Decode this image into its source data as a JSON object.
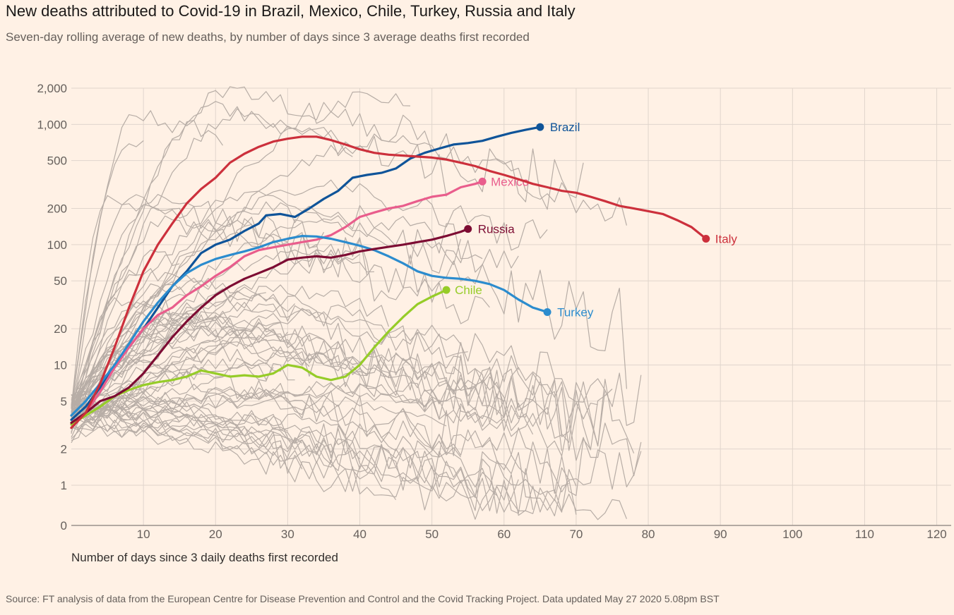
{
  "header": {
    "title": "New deaths attributed to Covid-19 in Brazil, Mexico, Chile, Turkey, Russia and Italy",
    "subtitle": "Seven-day rolling average of new deaths, by number of days since 3 average deaths first recorded"
  },
  "footer": {
    "source": "Source: FT analysis of data from the European Centre for Disease Prevention and Control and the Covid Tracking Project. Data updated May 27 2020 5.08pm BST"
  },
  "chart_data": {
    "type": "line",
    "title": "New deaths attributed to Covid-19 in Brazil, Mexico, Chile, Turkey, Russia and Italy",
    "subtitle": "Seven-day rolling average of new deaths, by number of days since 3 average deaths first recorded",
    "xlabel": "Number of days since 3 daily deaths first recorded",
    "ylabel": "",
    "xlim": [
      0,
      122
    ],
    "ylim": [
      0,
      2000
    ],
    "y_scale": "log (symlog, 0 at baseline)",
    "grid": true,
    "x_ticks": [
      {
        "value": 10,
        "label": "10"
      },
      {
        "value": 20,
        "label": "20"
      },
      {
        "value": 30,
        "label": "30"
      },
      {
        "value": 40,
        "label": "40"
      },
      {
        "value": 50,
        "label": "50"
      },
      {
        "value": 60,
        "label": "60"
      },
      {
        "value": 70,
        "label": "70"
      },
      {
        "value": 80,
        "label": "80"
      },
      {
        "value": 90,
        "label": "90"
      },
      {
        "value": 100,
        "label": "100"
      },
      {
        "value": 110,
        "label": "110"
      },
      {
        "value": 120,
        "label": "120"
      }
    ],
    "y_ticks": [
      {
        "value": 0,
        "label": "0"
      },
      {
        "value": 1,
        "label": "1"
      },
      {
        "value": 2,
        "label": "2"
      },
      {
        "value": 5,
        "label": "5"
      },
      {
        "value": 10,
        "label": "10"
      },
      {
        "value": 20,
        "label": "20"
      },
      {
        "value": 50,
        "label": "50"
      },
      {
        "value": 100,
        "label": "100"
      },
      {
        "value": 200,
        "label": "200"
      },
      {
        "value": 500,
        "label": "500"
      },
      {
        "value": 1000,
        "label": "1,000"
      },
      {
        "value": 2000,
        "label": "2,000"
      }
    ],
    "colors": {
      "background": "#fff1e5",
      "grid": "#e0d5cc",
      "other_countries": "#b7ada6",
      "axis": "#9a918c"
    },
    "series": [
      {
        "name": "Brazil",
        "color": "#0f5499",
        "values": [
          [
            0,
            3.5
          ],
          [
            2,
            4.5
          ],
          [
            4,
            6.5
          ],
          [
            6,
            10
          ],
          [
            8,
            14
          ],
          [
            10,
            20
          ],
          [
            12,
            30
          ],
          [
            14,
            45
          ],
          [
            16,
            60
          ],
          [
            18,
            85
          ],
          [
            20,
            100
          ],
          [
            22,
            110
          ],
          [
            24,
            130
          ],
          [
            26,
            150
          ],
          [
            27,
            175
          ],
          [
            29,
            180
          ],
          [
            31,
            170
          ],
          [
            33,
            200
          ],
          [
            35,
            240
          ],
          [
            37,
            280
          ],
          [
            39,
            360
          ],
          [
            41,
            380
          ],
          [
            43,
            395
          ],
          [
            45,
            430
          ],
          [
            47,
            520
          ],
          [
            49,
            580
          ],
          [
            51,
            630
          ],
          [
            53,
            680
          ],
          [
            55,
            700
          ],
          [
            57,
            730
          ],
          [
            59,
            790
          ],
          [
            61,
            850
          ],
          [
            63,
            900
          ],
          [
            65,
            950
          ]
        ]
      },
      {
        "name": "Mexico",
        "color": "#e95d8c",
        "values": [
          [
            0,
            3
          ],
          [
            2,
            4
          ],
          [
            4,
            6
          ],
          [
            6,
            9.5
          ],
          [
            8,
            14
          ],
          [
            10,
            20
          ],
          [
            12,
            26
          ],
          [
            14,
            30
          ],
          [
            16,
            38
          ],
          [
            18,
            45
          ],
          [
            20,
            55
          ],
          [
            22,
            65
          ],
          [
            24,
            80
          ],
          [
            26,
            90
          ],
          [
            28,
            95
          ],
          [
            30,
            100
          ],
          [
            32,
            105
          ],
          [
            34,
            110
          ],
          [
            36,
            120
          ],
          [
            38,
            140
          ],
          [
            40,
            170
          ],
          [
            42,
            185
          ],
          [
            44,
            200
          ],
          [
            46,
            210
          ],
          [
            48,
            230
          ],
          [
            50,
            250
          ],
          [
            52,
            260
          ],
          [
            54,
            300
          ],
          [
            56,
            320
          ],
          [
            57,
            335
          ]
        ]
      },
      {
        "name": "Chile",
        "color": "#96cc28",
        "values": [
          [
            0,
            3.2
          ],
          [
            2,
            3.8
          ],
          [
            4,
            4.5
          ],
          [
            6,
            5.5
          ],
          [
            8,
            6.2
          ],
          [
            10,
            6.8
          ],
          [
            12,
            7.2
          ],
          [
            14,
            7.5
          ],
          [
            16,
            8
          ],
          [
            18,
            9
          ],
          [
            20,
            8.5
          ],
          [
            22,
            8
          ],
          [
            24,
            8.2
          ],
          [
            26,
            8
          ],
          [
            28,
            8.5
          ],
          [
            30,
            10
          ],
          [
            32,
            9.5
          ],
          [
            34,
            8
          ],
          [
            36,
            7.5
          ],
          [
            38,
            8
          ],
          [
            40,
            10
          ],
          [
            42,
            14
          ],
          [
            44,
            19
          ],
          [
            46,
            25
          ],
          [
            48,
            32
          ],
          [
            50,
            37
          ],
          [
            52,
            42
          ]
        ]
      },
      {
        "name": "Turkey",
        "color": "#2b8cce",
        "values": [
          [
            0,
            3.8
          ],
          [
            2,
            5
          ],
          [
            4,
            7
          ],
          [
            6,
            10
          ],
          [
            8,
            15
          ],
          [
            10,
            23
          ],
          [
            12,
            33
          ],
          [
            14,
            45
          ],
          [
            16,
            58
          ],
          [
            18,
            68
          ],
          [
            20,
            76
          ],
          [
            22,
            82
          ],
          [
            24,
            88
          ],
          [
            26,
            95
          ],
          [
            28,
            105
          ],
          [
            30,
            112
          ],
          [
            32,
            118
          ],
          [
            34,
            117
          ],
          [
            36,
            112
          ],
          [
            38,
            105
          ],
          [
            40,
            98
          ],
          [
            42,
            90
          ],
          [
            44,
            80
          ],
          [
            46,
            70
          ],
          [
            48,
            60
          ],
          [
            50,
            55
          ],
          [
            52,
            53
          ],
          [
            54,
            52
          ],
          [
            56,
            50
          ],
          [
            58,
            47
          ],
          [
            60,
            42
          ],
          [
            62,
            35
          ],
          [
            64,
            30
          ],
          [
            66,
            27.5
          ]
        ]
      },
      {
        "name": "Russia",
        "color": "#7d0c33",
        "values": [
          [
            0,
            3.3
          ],
          [
            2,
            4
          ],
          [
            4,
            5
          ],
          [
            6,
            5.5
          ],
          [
            8,
            6.5
          ],
          [
            10,
            8.5
          ],
          [
            12,
            12
          ],
          [
            14,
            17
          ],
          [
            16,
            23
          ],
          [
            18,
            30
          ],
          [
            20,
            38
          ],
          [
            22,
            45
          ],
          [
            24,
            52
          ],
          [
            26,
            58
          ],
          [
            28,
            65
          ],
          [
            30,
            75
          ],
          [
            32,
            78
          ],
          [
            34,
            80
          ],
          [
            36,
            78
          ],
          [
            38,
            82
          ],
          [
            40,
            88
          ],
          [
            42,
            92
          ],
          [
            44,
            96
          ],
          [
            46,
            100
          ],
          [
            48,
            105
          ],
          [
            50,
            110
          ],
          [
            52,
            118
          ],
          [
            54,
            128
          ],
          [
            55,
            135
          ]
        ]
      },
      {
        "name": "Italy",
        "color": "#cc303c",
        "values": [
          [
            0,
            3
          ],
          [
            2,
            4
          ],
          [
            4,
            7
          ],
          [
            6,
            14
          ],
          [
            8,
            30
          ],
          [
            10,
            60
          ],
          [
            12,
            100
          ],
          [
            14,
            150
          ],
          [
            16,
            220
          ],
          [
            18,
            290
          ],
          [
            20,
            360
          ],
          [
            22,
            480
          ],
          [
            24,
            570
          ],
          [
            26,
            650
          ],
          [
            28,
            720
          ],
          [
            30,
            760
          ],
          [
            32,
            790
          ],
          [
            34,
            790
          ],
          [
            36,
            740
          ],
          [
            38,
            680
          ],
          [
            40,
            620
          ],
          [
            42,
            580
          ],
          [
            44,
            560
          ],
          [
            46,
            550
          ],
          [
            48,
            540
          ],
          [
            50,
            530
          ],
          [
            52,
            510
          ],
          [
            54,
            480
          ],
          [
            56,
            450
          ],
          [
            58,
            410
          ],
          [
            60,
            380
          ],
          [
            62,
            350
          ],
          [
            64,
            320
          ],
          [
            66,
            300
          ],
          [
            68,
            280
          ],
          [
            70,
            270
          ],
          [
            72,
            250
          ],
          [
            74,
            230
          ],
          [
            76,
            210
          ],
          [
            78,
            200
          ],
          [
            80,
            190
          ],
          [
            82,
            180
          ],
          [
            84,
            160
          ],
          [
            86,
            140
          ],
          [
            88,
            112
          ]
        ]
      }
    ]
  }
}
